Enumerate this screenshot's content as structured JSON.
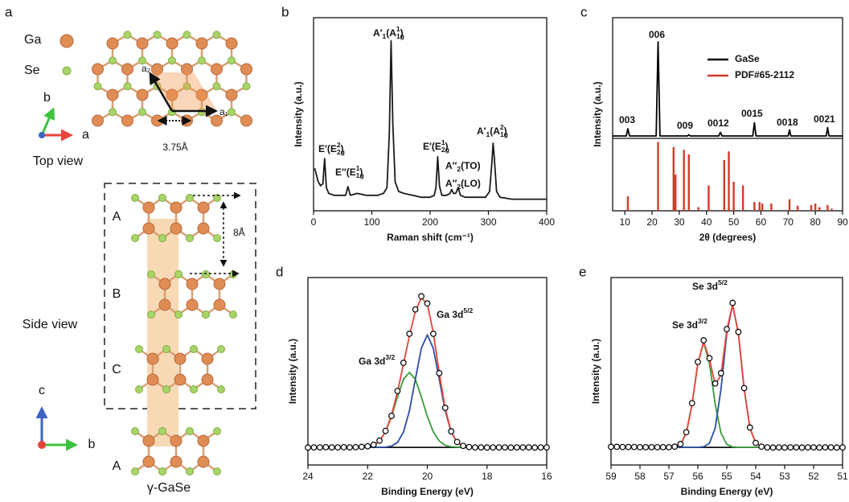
{
  "structure": {
    "panel": "a",
    "legend": [
      "Ga",
      "Se"
    ],
    "top_axes": [
      "a",
      "b"
    ],
    "lattice": [
      "a₁",
      "a₂"
    ],
    "spacing": "3.75Å",
    "top_caption": "Top view",
    "layers": [
      "A",
      "B",
      "C",
      "A"
    ],
    "interlayer": "8Å",
    "side_caption": "Side view",
    "side_axes": [
      "c",
      "b"
    ],
    "name": "γ-GaSe"
  },
  "chart_data": [
    {
      "type": "line",
      "panel": "b",
      "xlabel": "Raman shift (cm⁻¹)",
      "ylabel": "Intensity (a.u.)",
      "x": [
        2,
        8,
        12,
        16,
        19,
        22,
        26,
        35,
        45,
        55,
        59,
        63,
        75,
        90,
        100,
        110,
        120,
        126,
        130,
        133,
        136,
        140,
        146,
        155,
        170,
        185,
        200,
        207,
        210,
        213,
        216,
        220,
        228,
        234,
        237,
        240,
        244,
        248,
        252,
        260,
        280,
        295,
        302,
        306,
        308,
        310,
        314,
        320,
        340,
        360,
        380,
        400
      ],
      "series": [
        {
          "color": "#1a1a1a",
          "values": [
            0.22,
            0.15,
            0.13,
            0.14,
            0.27,
            0.12,
            0.09,
            0.08,
            0.08,
            0.08,
            0.125,
            0.08,
            0.09,
            0.08,
            0.08,
            0.08,
            0.09,
            0.12,
            0.4,
            0.88,
            0.45,
            0.15,
            0.1,
            0.09,
            0.08,
            0.07,
            0.07,
            0.08,
            0.12,
            0.28,
            0.13,
            0.08,
            0.08,
            0.09,
            0.11,
            0.09,
            0.09,
            0.12,
            0.08,
            0.07,
            0.07,
            0.07,
            0.1,
            0.25,
            0.35,
            0.28,
            0.1,
            0.07,
            0.06,
            0.06,
            0.06,
            0.06
          ]
        }
      ],
      "xlim": [
        0,
        400
      ],
      "xticks": [
        0,
        100,
        200,
        300,
        400
      ],
      "ylim": [
        0,
        1
      ],
      "annotations": [
        [
          "E′(E",
          "2g",
          "2",
          ")"
        ],
        [
          "E″(E",
          "1g",
          "1",
          ")"
        ],
        [
          "A′",
          "1",
          "(A",
          "1g",
          "1",
          ")"
        ],
        [
          "E′(E",
          "2g",
          "1",
          ")"
        ],
        [
          "A″",
          "2",
          "(TO)"
        ],
        [
          "A″",
          "2",
          "(LO)"
        ],
        [
          "A′",
          "1",
          "(A",
          "1g",
          "2",
          ")"
        ]
      ]
    },
    {
      "type": "line",
      "panel": "c",
      "xlabel": "2θ (degrees)",
      "ylabel": "Intensity (a.u.)",
      "series": [
        {
          "name": "GaSe",
          "color": "#000000",
          "x": [
            5.5,
            10.5,
            11.1,
            11.7,
            21.5,
            22.2,
            22.9,
            33,
            33.5,
            34,
            44.5,
            45.1,
            45.7,
            57,
            57.6,
            58.2,
            70,
            70.5,
            71,
            84,
            84.5,
            85,
            90
          ],
          "values": [
            0.02,
            0.02,
            0.08,
            0.02,
            0.02,
            0.8,
            0.02,
            0.02,
            0.03,
            0.02,
            0.02,
            0.05,
            0.02,
            0.02,
            0.13,
            0.02,
            0.02,
            0.07,
            0.02,
            0.02,
            0.09,
            0.02,
            0.02
          ]
        },
        {
          "name": "PDF#65-2112",
          "color": "#d13a2a",
          "style": "stems",
          "x": [
            11.1,
            22.2,
            27.9,
            28.6,
            31.7,
            33.5,
            37,
            40.8,
            46.5,
            48.2,
            50,
            53.4,
            57.6,
            59.5,
            60.5,
            63.8,
            70.5,
            73.5,
            78.5,
            80,
            81.5,
            84.5,
            86
          ],
          "values": [
            0.2,
            0.95,
            0.88,
            0.5,
            0.84,
            0.78,
            0.05,
            0.35,
            0.7,
            0.82,
            0.4,
            0.35,
            0.12,
            0.12,
            0.1,
            0.1,
            0.16,
            0.07,
            0.08,
            0.1,
            0.05,
            0.08,
            0.03
          ]
        }
      ],
      "xlim": [
        5.5,
        90
      ],
      "xticks": [
        10,
        20,
        30,
        40,
        50,
        60,
        70,
        80,
        90
      ],
      "ylim": [
        0,
        1
      ],
      "legend": "upper right",
      "annotations": [
        "003",
        "006",
        "009",
        "0012",
        "0015",
        "0018",
        "0021"
      ]
    },
    {
      "type": "line",
      "panel": "d",
      "xlabel": "Binding Energy (eV)",
      "ylabel": "Intensity (a.u.)",
      "x": [
        24,
        23.8,
        23.6,
        23.4,
        23.2,
        23,
        22.8,
        22.6,
        22.4,
        22.2,
        22,
        21.8,
        21.6,
        21.4,
        21.2,
        21,
        20.8,
        20.6,
        20.4,
        20.2,
        20,
        19.8,
        19.6,
        19.4,
        19.2,
        19,
        18.8,
        18.6,
        18.4,
        18.2,
        18,
        17.8,
        17.6,
        17.4,
        17.2,
        17,
        16.8,
        16.6,
        16.4,
        16.2,
        16
      ],
      "series": [
        {
          "color": "#111111",
          "values": [
            0.094,
            0.094,
            0.094,
            0.094,
            0.094,
            0.094,
            0.094,
            0.094,
            0.094,
            0.094,
            0.094,
            0.094,
            0.094,
            0.094,
            0.094,
            0.094,
            0.094,
            0.094,
            0.094,
            0.094,
            0.094,
            0.094,
            0.094,
            0.094,
            0.094,
            0.094,
            0.094,
            0.094,
            0.094,
            0.094,
            0.094,
            0.094,
            0.094,
            0.094,
            0.094,
            0.094,
            0.094,
            0.094,
            0.094,
            0.094,
            0.094
          ]
        },
        {
          "color": "#3a9a3a",
          "values": [
            0.094,
            0.094,
            0.094,
            0.094,
            0.094,
            0.094,
            0.094,
            0.094,
            0.094,
            0.095,
            0.097,
            0.105,
            0.128,
            0.177,
            0.259,
            0.363,
            0.457,
            0.494,
            0.457,
            0.363,
            0.259,
            0.177,
            0.128,
            0.105,
            0.097,
            0.095,
            0.094,
            0.094,
            0.094,
            0.094,
            0.094,
            0.094,
            0.094,
            0.094,
            0.094,
            0.094,
            0.094,
            0.094,
            0.094,
            0.094,
            0.094
          ]
        },
        {
          "color": "#2a4ea0",
          "values": [
            0.094,
            0.094,
            0.094,
            0.094,
            0.094,
            0.094,
            0.094,
            0.094,
            0.094,
            0.094,
            0.094,
            0.094,
            0.094,
            0.095,
            0.101,
            0.12,
            0.175,
            0.289,
            0.458,
            0.623,
            0.694,
            0.623,
            0.458,
            0.289,
            0.175,
            0.12,
            0.101,
            0.095,
            0.094,
            0.094,
            0.094,
            0.094,
            0.094,
            0.094,
            0.094,
            0.094,
            0.094,
            0.094,
            0.094,
            0.094,
            0.094
          ]
        },
        {
          "color": "#e8443a",
          "values": [
            0.094,
            0.094,
            0.094,
            0.094,
            0.094,
            0.094,
            0.094,
            0.094,
            0.094,
            0.095,
            0.097,
            0.105,
            0.128,
            0.178,
            0.266,
            0.389,
            0.538,
            0.689,
            0.821,
            0.892,
            0.859,
            0.706,
            0.492,
            0.3,
            0.178,
            0.121,
            0.101,
            0.095,
            0.094,
            0.094,
            0.094,
            0.094,
            0.094,
            0.094,
            0.094,
            0.094,
            0.094,
            0.094,
            0.094,
            0.094,
            0.094
          ]
        },
        {
          "color": "#000000",
          "style": "markers",
          "values": [
            0.093,
            0.094,
            0.094,
            0.095,
            0.094,
            0.094,
            0.095,
            0.094,
            0.095,
            0.097,
            0.1,
            0.108,
            0.13,
            0.182,
            0.262,
            0.395,
            0.545,
            0.7,
            0.83,
            0.9,
            0.862,
            0.7,
            0.49,
            0.305,
            0.18,
            0.123,
            0.102,
            0.096,
            0.094,
            0.094,
            0.093,
            0.094,
            0.094,
            0.094,
            0.093,
            0.094,
            0.094,
            0.094,
            0.093,
            0.094,
            0.094
          ]
        }
      ],
      "xlim": [
        24,
        16
      ],
      "xticks": [
        24,
        22,
        20,
        18,
        16
      ],
      "ylim": [
        0,
        1
      ],
      "annotations": [
        [
          "Ga 3d",
          "5/2"
        ],
        [
          "Ga 3d",
          "3/2"
        ]
      ]
    },
    {
      "type": "line",
      "panel": "e",
      "xlabel": "Binding Energy (eV)",
      "ylabel": "Intensity (a.u.)",
      "x": [
        59,
        58.8,
        58.6,
        58.4,
        58.2,
        58,
        57.8,
        57.6,
        57.4,
        57.2,
        57,
        56.8,
        56.6,
        56.4,
        56.2,
        56,
        55.8,
        55.6,
        55.4,
        55.2,
        55,
        54.8,
        54.6,
        54.4,
        54.2,
        54,
        53.8,
        53.6,
        53.4,
        53.2,
        53,
        52.8,
        52.6,
        52.4,
        52.2,
        52,
        51.8,
        51.6,
        51.4,
        51.2,
        51
      ],
      "series": [
        {
          "color": "#111111",
          "values": [
            0.094,
            0.094,
            0.094,
            0.094,
            0.094,
            0.094,
            0.094,
            0.094,
            0.094,
            0.094,
            0.094,
            0.094,
            0.094,
            0.094,
            0.094,
            0.094,
            0.094,
            0.094,
            0.094,
            0.094,
            0.094,
            0.094,
            0.094,
            0.094,
            0.094,
            0.094,
            0.094,
            0.094,
            0.094,
            0.094,
            0.094,
            0.094,
            0.094,
            0.094,
            0.094,
            0.094,
            0.094,
            0.094,
            0.094,
            0.094,
            0.094
          ]
        },
        {
          "color": "#3a9a3a",
          "values": [
            0.094,
            0.094,
            0.094,
            0.094,
            0.094,
            0.094,
            0.094,
            0.094,
            0.094,
            0.094,
            0.094,
            0.096,
            0.11,
            0.17,
            0.324,
            0.543,
            0.654,
            0.543,
            0.324,
            0.17,
            0.11,
            0.096,
            0.094,
            0.094,
            0.094,
            0.094,
            0.094,
            0.094,
            0.094,
            0.094,
            0.094,
            0.094,
            0.094,
            0.094,
            0.094,
            0.094,
            0.094,
            0.094,
            0.094,
            0.094,
            0.094
          ]
        },
        {
          "color": "#2a4ea0",
          "values": [
            0.094,
            0.094,
            0.094,
            0.094,
            0.094,
            0.094,
            0.094,
            0.094,
            0.094,
            0.094,
            0.094,
            0.094,
            0.094,
            0.094,
            0.094,
            0.094,
            0.097,
            0.116,
            0.197,
            0.406,
            0.703,
            0.854,
            0.703,
            0.406,
            0.197,
            0.116,
            0.097,
            0.094,
            0.094,
            0.094,
            0.094,
            0.094,
            0.094,
            0.094,
            0.094,
            0.094,
            0.094,
            0.094,
            0.094,
            0.094,
            0.094
          ]
        },
        {
          "color": "#e8443a",
          "values": [
            0.094,
            0.094,
            0.094,
            0.094,
            0.094,
            0.094,
            0.094,
            0.094,
            0.094,
            0.094,
            0.094,
            0.096,
            0.11,
            0.17,
            0.324,
            0.543,
            0.657,
            0.565,
            0.427,
            0.482,
            0.719,
            0.856,
            0.703,
            0.406,
            0.197,
            0.116,
            0.097,
            0.094,
            0.094,
            0.094,
            0.094,
            0.094,
            0.094,
            0.094,
            0.094,
            0.094,
            0.094,
            0.094,
            0.094,
            0.094,
            0.094
          ]
        },
        {
          "color": "#000000",
          "style": "markers",
          "values": [
            0.097,
            0.097,
            0.096,
            0.096,
            0.096,
            0.095,
            0.095,
            0.095,
            0.095,
            0.095,
            0.095,
            0.098,
            0.112,
            0.175,
            0.33,
            0.55,
            0.665,
            0.57,
            0.435,
            0.49,
            0.725,
            0.865,
            0.71,
            0.41,
            0.2,
            0.118,
            0.098,
            0.094,
            0.093,
            0.094,
            0.093,
            0.094,
            0.094,
            0.093,
            0.094,
            0.094,
            0.093,
            0.094,
            0.094,
            0.093,
            0.094
          ]
        }
      ],
      "xlim": [
        59,
        51
      ],
      "xticks": [
        59,
        58,
        57,
        56,
        55,
        54,
        53,
        52,
        51
      ],
      "ylim": [
        0,
        1
      ],
      "annotations": [
        [
          "Se 3d",
          "5/2"
        ],
        [
          "Se 3d",
          "3/2"
        ]
      ]
    }
  ]
}
